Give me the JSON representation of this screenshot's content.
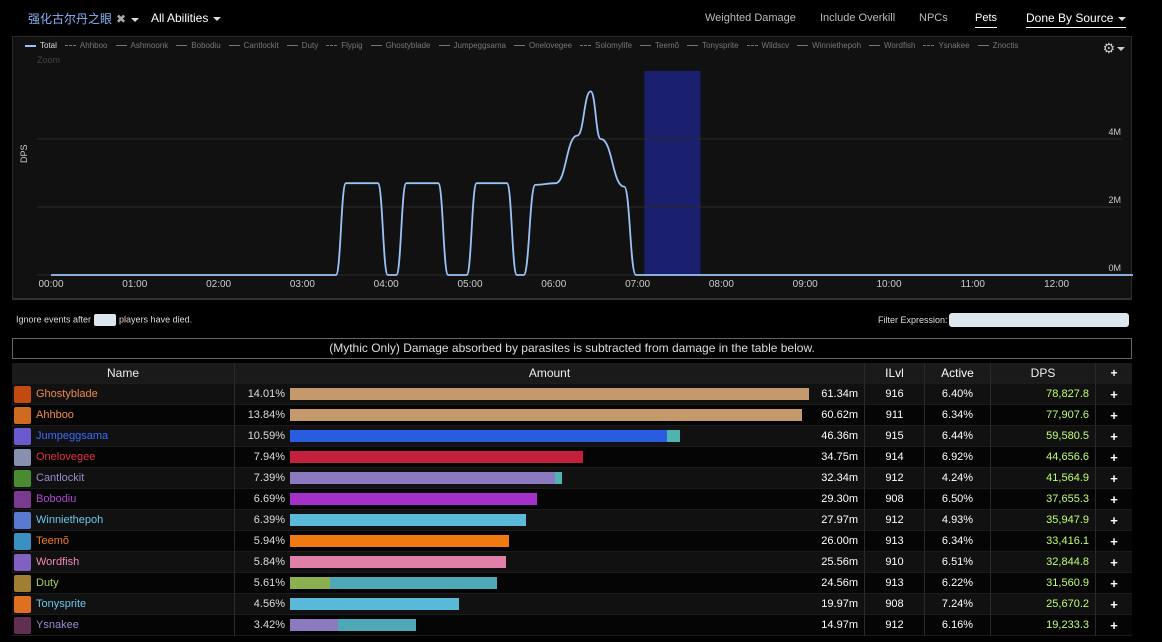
{
  "nav": {
    "boss": "强化古尔丹之眼",
    "boss_close": "✖",
    "abilities": "All Abilities",
    "weighted": "Weighted Damage",
    "overkill": "Include Overkill",
    "npcs": "NPCs",
    "pets": "Pets",
    "done_by": "Done By Source"
  },
  "chart": {
    "legend": [
      {
        "name": "Total",
        "style": "solid"
      },
      {
        "name": "Ahhboo",
        "style": "dash"
      },
      {
        "name": "Ashmoonk",
        "style": "solid"
      },
      {
        "name": "Bobodiu",
        "style": "solid"
      },
      {
        "name": "Cantlockit",
        "style": "solid"
      },
      {
        "name": "Duty",
        "style": "solid"
      },
      {
        "name": "Flypig",
        "style": "dash"
      },
      {
        "name": "Ghostyblade",
        "style": "solid"
      },
      {
        "name": "Jumpeggsama",
        "style": "solid"
      },
      {
        "name": "Onelovegee",
        "style": "solid"
      },
      {
        "name": "Solomylife",
        "style": "dash"
      },
      {
        "name": "Teemõ",
        "style": "solid"
      },
      {
        "name": "Tonysprite",
        "style": "solid"
      },
      {
        "name": "Wildscv",
        "style": "dash"
      },
      {
        "name": "Winniethepoh",
        "style": "solid"
      },
      {
        "name": "Wordfish",
        "style": "solid"
      },
      {
        "name": "Ysnakee",
        "style": "dash"
      },
      {
        "name": "Znoctis",
        "style": "solid"
      }
    ],
    "zoom": "Zoom",
    "ylabel": "DPS",
    "x_ticks": [
      "00:00",
      "01:00",
      "02:00",
      "03:00",
      "04:00",
      "05:00",
      "06:00",
      "07:00",
      "08:00",
      "09:00",
      "10:00",
      "11:00",
      "12:00"
    ],
    "y_ticks": [
      {
        "label": "0M",
        "value": 0
      },
      {
        "label": "2M",
        "value": 2000000
      },
      {
        "label": "4M",
        "value": 4000000
      }
    ],
    "y_max": 6000000,
    "x_max": 13,
    "highlight": [
      7.08,
      7.75
    ],
    "colors": {
      "line": "#9bc3f5",
      "highlight": "#1a1f6e",
      "grid": "#2a2a2a"
    },
    "series_total": [
      [
        0,
        0
      ],
      [
        3.4,
        0
      ],
      [
        3.52,
        2.7
      ],
      [
        3.9,
        2.7
      ],
      [
        4.02,
        0
      ],
      [
        4.12,
        0
      ],
      [
        4.24,
        2.7
      ],
      [
        4.62,
        2.7
      ],
      [
        4.74,
        0
      ],
      [
        4.96,
        0
      ],
      [
        5.08,
        2.7
      ],
      [
        5.44,
        2.7
      ],
      [
        5.56,
        0
      ],
      [
        5.64,
        0
      ],
      [
        5.78,
        2.65
      ],
      [
        6.02,
        2.7
      ],
      [
        6.28,
        4.1
      ],
      [
        6.44,
        5.4
      ],
      [
        6.56,
        4.0
      ],
      [
        6.84,
        2.6
      ],
      [
        6.98,
        0
      ],
      [
        13,
        0
      ]
    ]
  },
  "filters": {
    "ignore_before": "Ignore events after",
    "ignore_after": "players have died.",
    "expression_label": "Filter Expression:"
  },
  "notice": "(Mythic Only) Damage absorbed by parasites is subtracted from damage in the table below.",
  "table": {
    "headers": {
      "name": "Name",
      "amount": "Amount",
      "ilvl": "ILvl",
      "active": "Active",
      "dps": "DPS",
      "plus": "+"
    },
    "rows": [
      {
        "name": "Ghostyblade",
        "color": "#f08a4b",
        "avatar": "#c04a10",
        "pct": "14.01%",
        "bars": [
          {
            "w": 0.998,
            "c": "#c49a6c"
          }
        ],
        "amount": "61.34m",
        "ilvl": "916",
        "active": "6.40%",
        "dps": "78,827.8"
      },
      {
        "name": "Ahhboo",
        "color": "#f08a4b",
        "avatar": "#d06a20",
        "pct": "13.84%",
        "bars": [
          {
            "w": 0.985,
            "c": "#c49a6c"
          }
        ],
        "amount": "60.62m",
        "ilvl": "911",
        "active": "6.34%",
        "dps": "77,907.6"
      },
      {
        "name": "Jumpeggsama",
        "color": "#3a6bff",
        "avatar": "#6a5ad0",
        "pct": "10.59%",
        "bars": [
          {
            "w": 0.725,
            "c": "#2a5ce0"
          },
          {
            "w": 0.025,
            "c": "#4fb3b0"
          }
        ],
        "amount": "46.36m",
        "ilvl": "915",
        "active": "6.44%",
        "dps": "59,580.5"
      },
      {
        "name": "Onelovegee",
        "color": "#e03040",
        "avatar": "#8890b0",
        "pct": "7.94%",
        "bars": [
          {
            "w": 0.563,
            "c": "#c41f3b"
          }
        ],
        "amount": "34.75m",
        "ilvl": "914",
        "active": "6.92%",
        "dps": "44,656.6"
      },
      {
        "name": "Cantlockit",
        "color": "#9a8ad0",
        "avatar": "#4a8a30",
        "pct": "7.39%",
        "bars": [
          {
            "w": 0.51,
            "c": "#8a7ac0"
          },
          {
            "w": 0.014,
            "c": "#4fb3b0"
          }
        ],
        "amount": "32.34m",
        "ilvl": "912",
        "active": "4.24%",
        "dps": "41,564.9"
      },
      {
        "name": "Bobodiu",
        "color": "#b04ad0",
        "avatar": "#7a3a90",
        "pct": "6.69%",
        "bars": [
          {
            "w": 0.475,
            "c": "#a330c9"
          }
        ],
        "amount": "29.30m",
        "ilvl": "908",
        "active": "6.50%",
        "dps": "37,655.3"
      },
      {
        "name": "Winniethepoh",
        "color": "#6ac8f0",
        "avatar": "#5a7ad0",
        "pct": "6.39%",
        "bars": [
          {
            "w": 0.454,
            "c": "#5ab8d8"
          }
        ],
        "amount": "27.97m",
        "ilvl": "912",
        "active": "4.93%",
        "dps": "35,947.9"
      },
      {
        "name": "Teemõ",
        "color": "#f07a20",
        "avatar": "#3a90c0",
        "pct": "5.94%",
        "bars": [
          {
            "w": 0.421,
            "c": "#f07a10"
          }
        ],
        "amount": "26.00m",
        "ilvl": "913",
        "active": "6.34%",
        "dps": "33,416.1"
      },
      {
        "name": "Wordfish",
        "color": "#f08ab8",
        "avatar": "#8060c0",
        "pct": "5.84%",
        "bars": [
          {
            "w": 0.415,
            "c": "#e080a8"
          }
        ],
        "amount": "25.56m",
        "ilvl": "910",
        "active": "6.51%",
        "dps": "32,844.8"
      },
      {
        "name": "Duty",
        "color": "#a8d060",
        "avatar": "#a08030",
        "pct": "5.61%",
        "bars": [
          {
            "w": 0.077,
            "c": "#8ab050"
          },
          {
            "w": 0.322,
            "c": "#4fa8b8"
          }
        ],
        "amount": "24.56m",
        "ilvl": "913",
        "active": "6.22%",
        "dps": "31,560.9"
      },
      {
        "name": "Tonysprite",
        "color": "#6ac8f0",
        "avatar": "#e07020",
        "pct": "4.56%",
        "bars": [
          {
            "w": 0.325,
            "c": "#5ab8d8"
          }
        ],
        "amount": "19.97m",
        "ilvl": "908",
        "active": "7.24%",
        "dps": "25,670.2"
      },
      {
        "name": "Ysnakee",
        "color": "#9a8ad0",
        "avatar": "#603050",
        "pct": "3.42%",
        "bars": [
          {
            "w": 0.092,
            "c": "#8a7ac0"
          },
          {
            "w": 0.15,
            "c": "#4fa8b8"
          }
        ],
        "amount": "14.97m",
        "ilvl": "912",
        "active": "6.16%",
        "dps": "19,233.3"
      }
    ]
  }
}
